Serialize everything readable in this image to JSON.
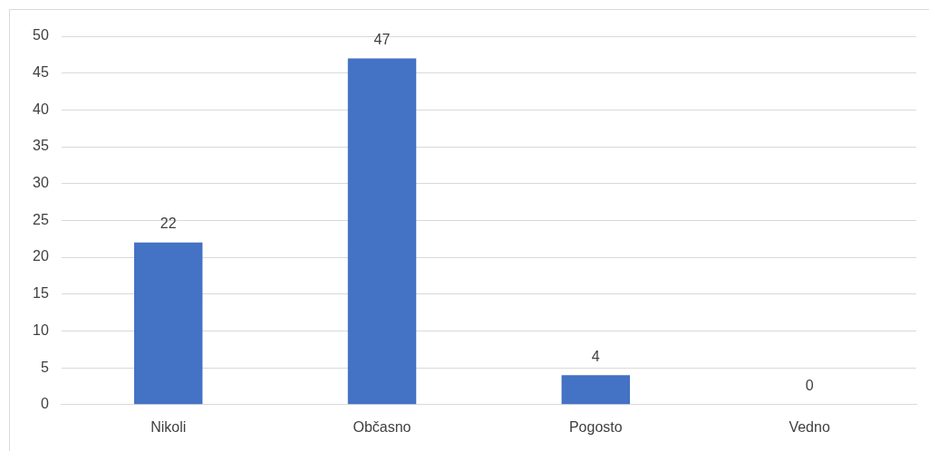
{
  "chart_data": {
    "type": "bar",
    "categories": [
      "Nikoli",
      "Občasno",
      "Pogosto",
      "Vedno"
    ],
    "values": [
      22,
      47,
      4,
      0
    ],
    "color": "#4472c4",
    "ylim": [
      0,
      50
    ],
    "yticks": [
      0,
      5,
      10,
      15,
      20,
      25,
      30,
      35,
      40,
      45,
      50
    ],
    "grid": "y",
    "data_labels": true,
    "legend": false
  }
}
